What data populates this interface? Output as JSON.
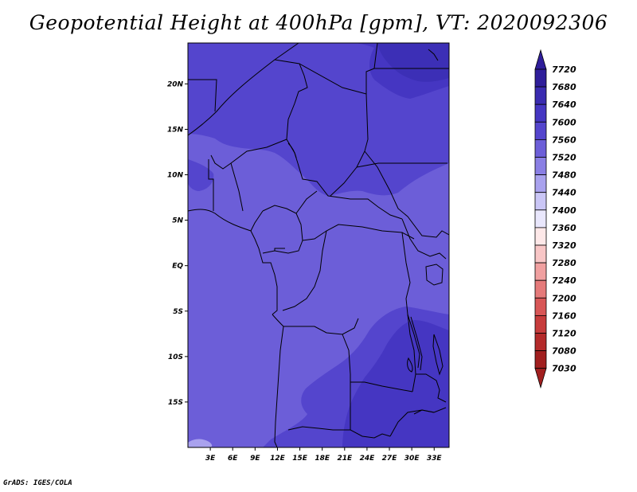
{
  "title": "Geopotential Height at 400hPa [gpm], VT: 2020092306",
  "credit": "GrADS: IGES/COLA",
  "map": {
    "variable": "Geopotential Height",
    "level": "400hPa",
    "units": "gpm",
    "valid_time": "2020092306",
    "region": "Central Africa",
    "lon_range": [
      0,
      35
    ],
    "lat_range": [
      -20,
      24.5
    ],
    "lat_ticks": [
      "20N",
      "15N",
      "10N",
      "5N",
      "EQ",
      "5S",
      "10S",
      "15S"
    ],
    "lon_ticks": [
      "3E",
      "6E",
      "9E",
      "12E",
      "15E",
      "18E",
      "21E",
      "24E",
      "27E",
      "30E",
      "33E"
    ],
    "colors": {
      "c7520": "#6c5ed8",
      "c7560": "#5445cd",
      "c7600": "#4536c2",
      "c7640": "#3c2fb6",
      "border": "#000000",
      "background": "#ffffff"
    }
  },
  "colorbar": {
    "levels": [
      "7720",
      "7680",
      "7640",
      "7600",
      "7560",
      "7520",
      "7480",
      "7440",
      "7400",
      "7360",
      "7320",
      "7280",
      "7240",
      "7200",
      "7160",
      "7120",
      "7080",
      "7030"
    ],
    "colors": [
      "#2f1e9a",
      "#3a2bb0",
      "#4536c2",
      "#5445cd",
      "#6c5ed8",
      "#8a7fe4",
      "#a9a2ee",
      "#cac6f6",
      "#e9e7fc",
      "#fde8e8",
      "#f8c6c6",
      "#f0a0a0",
      "#e57a7a",
      "#d85656",
      "#c73c3c",
      "#b42a2a",
      "#a11f1f"
    ]
  }
}
